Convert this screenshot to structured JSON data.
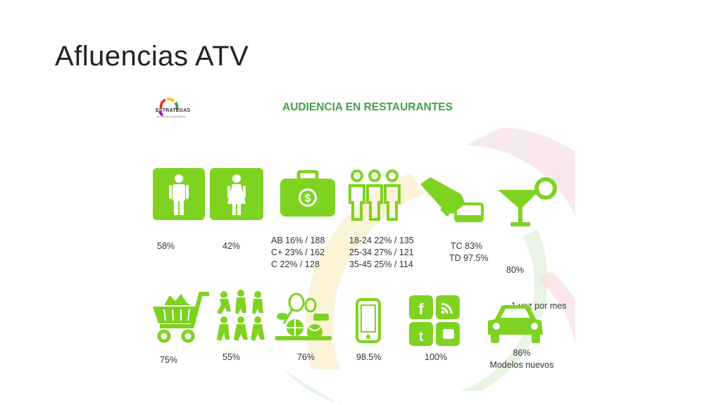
{
  "slide": {
    "title": "Afluencias ATV"
  },
  "panel": {
    "logo_text": "ESTRATEGAS",
    "logo_tagline": "en medios publicitarios",
    "heading": "AUDIENCIA EN RESTAURANTES",
    "accent_color": "#7ed321",
    "row1": [
      {
        "icon": "man-icon",
        "lines": [
          "58%"
        ]
      },
      {
        "icon": "woman-icon",
        "lines": [
          "42%"
        ]
      },
      {
        "icon": "money-briefcase-icon",
        "lines": [
          "AB 16% / 188",
          "C+  23% / 162",
          "C    22% / 128"
        ]
      },
      {
        "icon": "people-group-icon",
        "lines": [
          "18-24   22% / 135",
          "25-34   27% / 121",
          "35-45   25% / 114"
        ]
      },
      {
        "icon": "card-payment-icon",
        "lines": [
          "TC 83%",
          "TD 97.5%"
        ]
      },
      {
        "icon": "cocktail-icon",
        "lines": [
          "80%",
          "  1 vez por mes"
        ]
      }
    ],
    "row2": [
      {
        "icon": "shopping-cart-icon",
        "lines": [
          "75%"
        ]
      },
      {
        "icon": "sports-people-icon",
        "lines": [
          "55%"
        ]
      },
      {
        "icon": "sports-balls-icon",
        "lines": [
          "76%"
        ]
      },
      {
        "icon": "smartphone-icon",
        "lines": [
          "98.5%"
        ]
      },
      {
        "icon": "social-media-icon",
        "lines": [
          "100%"
        ]
      },
      {
        "icon": "car-icon",
        "lines": [
          "86%",
          "Modelos nuevos"
        ]
      }
    ]
  }
}
